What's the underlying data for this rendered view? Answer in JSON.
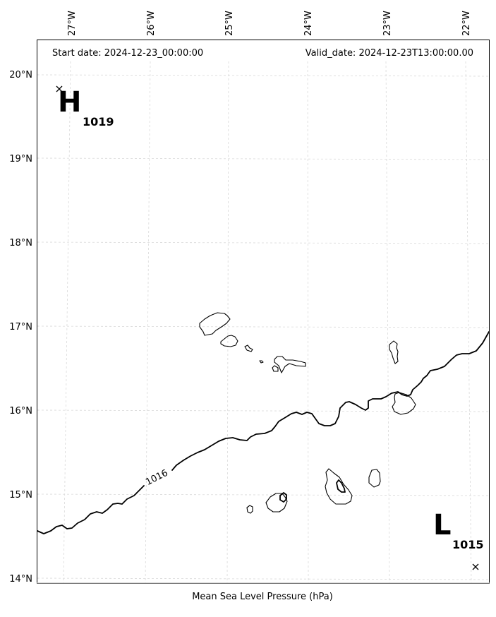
{
  "header": {
    "start_date": "Start date: 2024-12-23_00:00:00",
    "valid_date": "Valid_date: 2024-12-23T13:00:00.00"
  },
  "footer": {
    "xlabel": "Mean Sea Level Pressure (hPa)"
  },
  "axes": {
    "lon_labels": [
      "27°W",
      "26°W",
      "25°W",
      "24°W",
      "23°W",
      "22°W"
    ],
    "lat_labels": [
      "20°N",
      "19°N",
      "18°N",
      "17°N",
      "16°N",
      "15°N",
      "14°N"
    ]
  },
  "isobars": [
    {
      "label": "1016"
    }
  ],
  "pressure_centers": [
    {
      "type": "high",
      "letter": "H",
      "value": "1019"
    },
    {
      "type": "low",
      "letter": "L",
      "value": "1015"
    }
  ]
}
